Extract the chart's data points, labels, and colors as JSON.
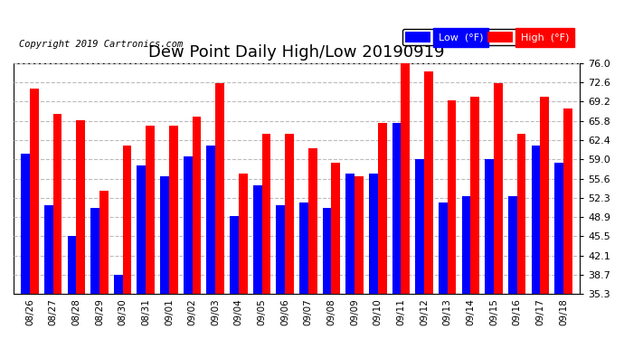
{
  "title": "Dew Point Daily High/Low 20190919",
  "copyright": "Copyright 2019 Cartronics.com",
  "dates": [
    "08/26",
    "08/27",
    "08/28",
    "08/29",
    "08/30",
    "08/31",
    "09/01",
    "09/02",
    "09/03",
    "09/04",
    "09/05",
    "09/06",
    "09/07",
    "09/08",
    "09/09",
    "09/10",
    "09/11",
    "09/12",
    "09/13",
    "09/14",
    "09/15",
    "09/16",
    "09/17",
    "09/18"
  ],
  "low_values": [
    60.0,
    51.0,
    45.5,
    50.5,
    38.7,
    58.0,
    56.0,
    59.5,
    61.5,
    49.0,
    54.5,
    51.0,
    51.5,
    50.5,
    56.5,
    56.5,
    65.5,
    59.0,
    51.5,
    52.5,
    59.0,
    52.5,
    61.5,
    58.5
  ],
  "high_values": [
    71.5,
    67.0,
    66.0,
    53.5,
    61.5,
    65.0,
    65.0,
    66.5,
    72.5,
    56.5,
    63.5,
    63.5,
    61.0,
    58.5,
    56.0,
    65.5,
    76.0,
    74.5,
    69.5,
    70.0,
    72.5,
    63.5,
    70.0,
    68.0
  ],
  "ylim": [
    35.3,
    76.0
  ],
  "yticks": [
    35.3,
    38.7,
    42.1,
    45.5,
    48.9,
    52.3,
    55.6,
    59.0,
    62.4,
    65.8,
    69.2,
    72.6,
    76.0
  ],
  "low_color": "#0000ff",
  "high_color": "#ff0000",
  "bg_color": "#ffffff",
  "grid_color": "#bbbbbb",
  "title_fontsize": 13,
  "bar_width": 0.38,
  "legend_low_label": "Low  (°F)",
  "legend_high_label": "High  (°F)"
}
